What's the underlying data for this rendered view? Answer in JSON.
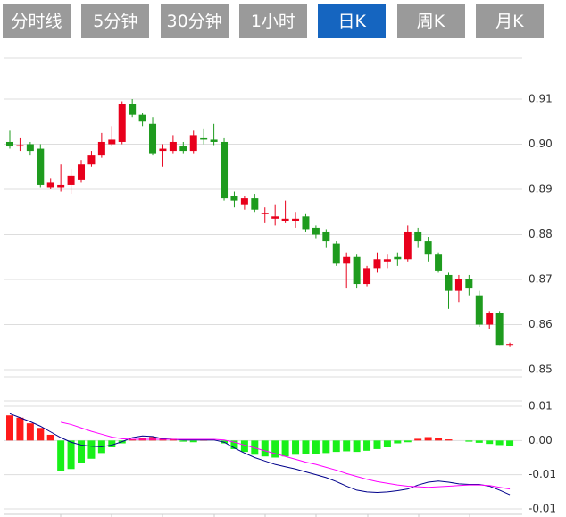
{
  "tabs": [
    "分时线",
    "5分钟",
    "30分钟",
    "1小时",
    "日K",
    "周K",
    "月K"
  ],
  "active_tab": 4,
  "chart_data": [
    {
      "type": "candlestick",
      "open": [
        0.9005,
        0.8995,
        0.9,
        0.899,
        0.8905,
        0.8905,
        0.891,
        0.892,
        0.8955,
        0.8975,
        0.9,
        0.9005,
        0.909,
        0.9065,
        0.9045,
        0.8985,
        0.8985,
        0.8995,
        0.8985,
        0.9015,
        0.901,
        0.9005,
        0.8885,
        0.8865,
        0.888,
        0.8845,
        0.8835,
        0.883,
        0.883,
        0.884,
        0.8815,
        0.8805,
        0.878,
        0.8735,
        0.875,
        0.869,
        0.8725,
        0.874,
        0.875,
        0.8745,
        0.8805,
        0.8785,
        0.8755,
        0.871,
        0.8675,
        0.87,
        0.8665,
        0.86,
        0.8625,
        0.8555
      ],
      "high": [
        0.903,
        0.9015,
        0.9005,
        0.9,
        0.8925,
        0.8955,
        0.8945,
        0.8965,
        0.8985,
        0.9025,
        0.904,
        0.9095,
        0.91,
        0.907,
        0.906,
        0.9,
        0.902,
        0.9005,
        0.903,
        0.9035,
        0.9045,
        0.9015,
        0.8895,
        0.8885,
        0.889,
        0.886,
        0.8865,
        0.8875,
        0.885,
        0.8845,
        0.882,
        0.881,
        0.8785,
        0.876,
        0.8755,
        0.873,
        0.876,
        0.8755,
        0.876,
        0.882,
        0.8815,
        0.8795,
        0.876,
        0.8715,
        0.871,
        0.871,
        0.8675,
        0.863,
        0.863,
        0.856
      ],
      "low": [
        0.899,
        0.8985,
        0.8975,
        0.8905,
        0.89,
        0.8895,
        0.889,
        0.8915,
        0.895,
        0.897,
        0.8995,
        0.9,
        0.906,
        0.904,
        0.8975,
        0.895,
        0.898,
        0.898,
        0.898,
        0.9,
        0.8998,
        0.8875,
        0.886,
        0.8855,
        0.885,
        0.8825,
        0.882,
        0.8825,
        0.8815,
        0.8805,
        0.879,
        0.877,
        0.873,
        0.868,
        0.868,
        0.8685,
        0.8715,
        0.8725,
        0.873,
        0.874,
        0.877,
        0.874,
        0.8715,
        0.8635,
        0.865,
        0.8665,
        0.8595,
        0.859,
        0.8555,
        0.855
      ],
      "close": [
        0.8995,
        0.8998,
        0.8985,
        0.891,
        0.8915,
        0.891,
        0.893,
        0.8955,
        0.8975,
        0.9005,
        0.901,
        0.909,
        0.9065,
        0.905,
        0.898,
        0.899,
        0.9005,
        0.8985,
        0.902,
        0.901,
        0.9005,
        0.888,
        0.8875,
        0.888,
        0.8855,
        0.8848,
        0.884,
        0.8835,
        0.8835,
        0.881,
        0.88,
        0.8785,
        0.8735,
        0.875,
        0.869,
        0.8725,
        0.8745,
        0.8745,
        0.8745,
        0.8805,
        0.8785,
        0.8755,
        0.872,
        0.8675,
        0.87,
        0.868,
        0.86,
        0.8625,
        0.8555,
        0.8557
      ],
      "up_color": "#e8001c",
      "down_color": "#1e9b1e",
      "ylim": [
        0.85,
        0.92
      ],
      "yticks": [
        0.85,
        0.86,
        0.87,
        0.88,
        0.89,
        {
          "value": 0.9,
          "label": "0.90"
        },
        0.91
      ],
      "grid": true
    },
    {
      "type": "macd",
      "histogram": [
        0.0044,
        0.004,
        0.003,
        0.0022,
        0.001,
        -0.0053,
        -0.005,
        -0.004,
        -0.0032,
        -0.0022,
        -0.0012,
        -0.0005,
        0.0002,
        0.0005,
        0.0006,
        0.0005,
        0.0003,
        -0.0002,
        -0.0003,
        0.0001,
        0.0,
        -0.0005,
        -0.0015,
        -0.002,
        -0.0025,
        -0.0028,
        -0.003,
        -0.0028,
        -0.0025,
        -0.0024,
        -0.0023,
        -0.0022,
        -0.002,
        -0.0019,
        -0.002,
        -0.0018,
        -0.0015,
        -0.0012,
        -0.0005,
        -0.0003,
        0.0003,
        0.0006,
        0.0005,
        0.0002,
        0.0,
        -0.0002,
        -0.0004,
        -0.0006,
        -0.0008,
        -0.001
      ],
      "series": [
        {
          "color": "#00008b",
          "values": [
            0.0047,
            0.004,
            0.0033,
            0.0025,
            0.0015,
            0.0005,
            -0.0003,
            -0.0008,
            -0.001,
            -0.0011,
            -0.0008,
            -0.0002,
            0.0005,
            0.0008,
            0.0007,
            0.0003,
            0.0002,
            0.0001,
            0.0001,
            0.0001,
            0.0001,
            -0.0003,
            -0.0013,
            -0.0022,
            -0.003,
            -0.0036,
            -0.0042,
            -0.0046,
            -0.005,
            -0.0055,
            -0.006,
            -0.0065,
            -0.0072,
            -0.008,
            -0.0087,
            -0.009,
            -0.0091,
            -0.009,
            -0.0088,
            -0.0085,
            -0.0078,
            -0.0073,
            -0.0071,
            -0.0073,
            -0.0076,
            -0.0077,
            -0.0077,
            -0.008,
            -0.0087,
            -0.0095
          ]
        },
        {
          "color": "#ff00ff",
          "values": [
            null,
            null,
            null,
            null,
            null,
            0.0032,
            0.0028,
            0.0022,
            0.0016,
            0.0011,
            0.0006,
            0.0003,
            0.0002,
            0.0002,
            0.0002,
            0.0002,
            0.0002,
            0.0002,
            0.0002,
            0.0002,
            0.0002,
            0.0001,
            -0.0003,
            -0.0008,
            -0.0013,
            -0.0018,
            -0.0023,
            -0.0028,
            -0.0033,
            -0.0038,
            -0.0042,
            -0.0047,
            -0.0052,
            -0.0058,
            -0.0063,
            -0.0068,
            -0.0072,
            -0.0075,
            -0.0078,
            -0.008,
            -0.0081,
            -0.0082,
            -0.0081,
            -0.008,
            -0.0079,
            -0.0078,
            -0.0078,
            -0.0079,
            -0.0082,
            -0.0085
          ]
        }
      ],
      "up_color": "#ff1a1a",
      "down_color": "#19f019",
      "ylim": [
        -0.012,
        0.006
      ],
      "yticks": [
        {
          "value": 0.006,
          "label": "0.01"
        },
        {
          "value": 0,
          "label": "0.00"
        },
        {
          "value": -0.006,
          "label": "-0.01"
        },
        {
          "value": -0.012,
          "label": "-0.01"
        }
      ],
      "grid": true
    }
  ]
}
